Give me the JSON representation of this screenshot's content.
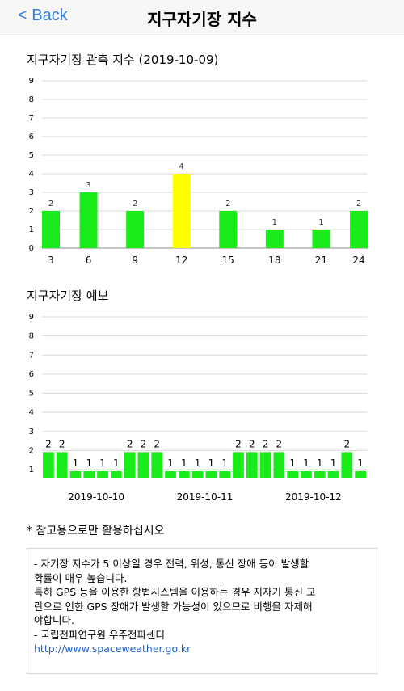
{
  "nav": {
    "back_label": "< Back",
    "title": "지구자기장 지수"
  },
  "observed": {
    "title": "지구자기장 관측 지수 (2019-10-09)"
  },
  "forecast": {
    "title": "지구자기장 예보"
  },
  "chart_data": [
    {
      "type": "bar",
      "title": "지구자기장 관측 지수 (2019-10-09)",
      "categories": [
        "3",
        "6",
        "9",
        "12",
        "15",
        "18",
        "21",
        "24"
      ],
      "values": [
        2,
        3,
        2,
        4,
        2,
        1,
        1,
        2
      ],
      "bar_colors": [
        "#1aeb1a",
        "#1aeb1a",
        "#1aeb1a",
        "#ffff00",
        "#1aeb1a",
        "#1aeb1a",
        "#1aeb1a",
        "#1aeb1a"
      ],
      "ylim": [
        0,
        9
      ],
      "yticks": [
        "0",
        "1",
        "2",
        "3",
        "4",
        "5",
        "6",
        "7",
        "8",
        "9"
      ],
      "grid": true
    },
    {
      "type": "bar",
      "title": "지구자기장 예보",
      "groups": [
        "2019-10-10",
        "2019-10-11",
        "2019-10-12"
      ],
      "values": [
        2,
        2,
        1,
        1,
        1,
        1,
        2,
        2,
        2,
        1,
        1,
        1,
        1,
        1,
        2,
        2,
        2,
        2,
        1,
        1,
        1,
        1,
        2,
        1
      ],
      "bar_color": "#1aeb1a",
      "ylim": [
        1,
        9
      ],
      "yticks": [
        "1",
        "2",
        "3",
        "4",
        "5",
        "6",
        "7",
        "8",
        "9"
      ],
      "grid": true
    }
  ],
  "note": "* 참고용으로만 활용하십시오",
  "info": {
    "line1": "- 자기장 지수가 5 이상일 경우 전력, 위성, 통신 장애 등이 발생할",
    "line2": "확률이 매우 높습니다.",
    "line3": "특히 GPS 등을 이용한 항법시스템을 이용하는 경우 지자기 통신 교",
    "line4": "란으로 인한 GPS 장애가 발생할 가능성이 있으므로 비행을 자제해",
    "line5": "야합니다.",
    "line6": "- 국립전파연구원 우주전파센터",
    "link": "http://www.spaceweather.go.kr"
  }
}
